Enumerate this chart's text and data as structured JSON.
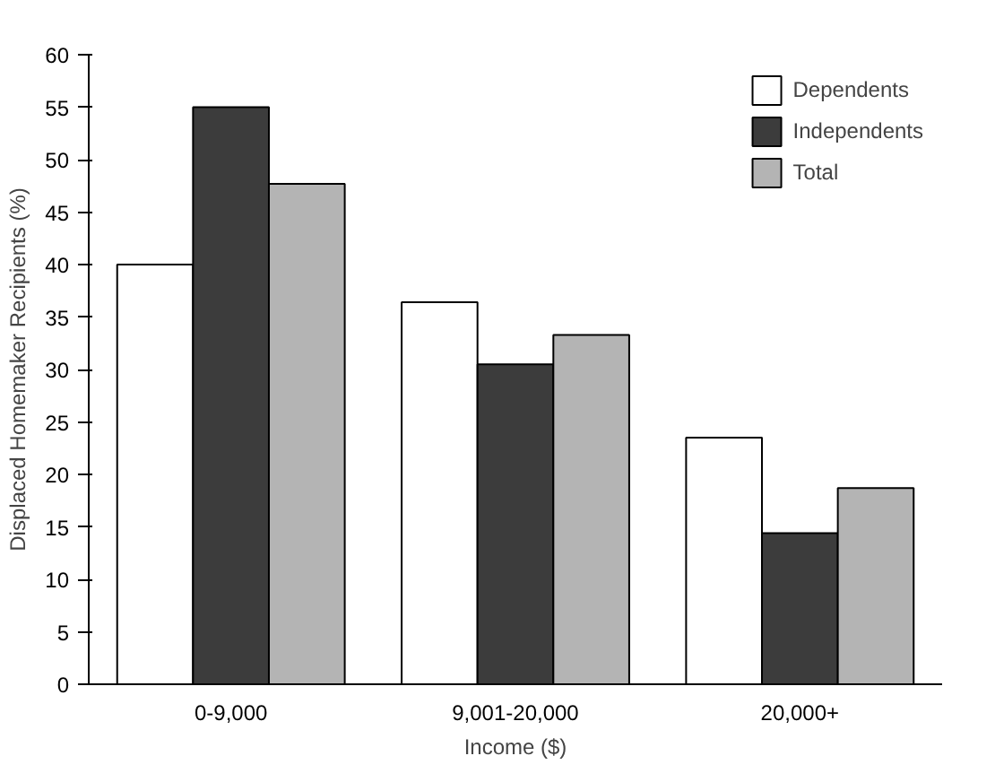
{
  "chart_data": {
    "type": "bar",
    "xlabel": "Income ($)",
    "ylabel": "Displaced Homemaker Recipients (%)",
    "categories": [
      "0-9,000",
      "9,001-20,000",
      "20,000+"
    ],
    "series": [
      {
        "name": "Dependents",
        "color": "#ffffff",
        "values": [
          40,
          36.4,
          23.5
        ]
      },
      {
        "name": "Independents",
        "color": "#3c3c3c",
        "values": [
          55,
          30.5,
          14.4
        ]
      },
      {
        "name": "Total",
        "color": "#b4b4b4",
        "values": [
          47.7,
          33.3,
          18.7
        ]
      }
    ],
    "ylim": [
      0,
      60
    ],
    "yticks": [
      0,
      5,
      10,
      15,
      20,
      25,
      30,
      35,
      40,
      45,
      50,
      55,
      60
    ],
    "grid": false,
    "legend": "top right"
  }
}
